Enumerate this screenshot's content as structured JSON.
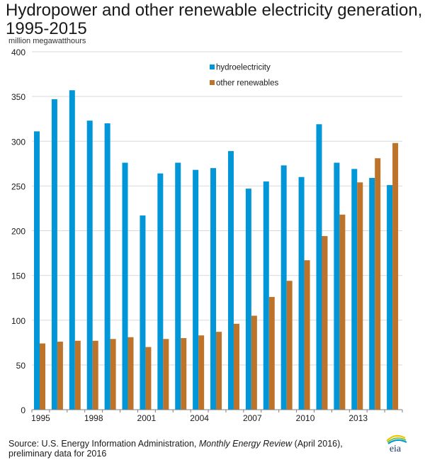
{
  "chart_data": {
    "type": "bar",
    "title": "Hydropower and other renewable electricity generation, 1995-2015",
    "ylabel": "million megawatthours",
    "xlabel": "",
    "ylim": [
      0,
      400
    ],
    "yticks": [
      0,
      50,
      100,
      150,
      200,
      250,
      300,
      350,
      400
    ],
    "grid": true,
    "legend_position": "top-center",
    "categories": [
      "1995",
      "1996",
      "1997",
      "1998",
      "1999",
      "2000",
      "2001",
      "2002",
      "2003",
      "2004",
      "2005",
      "2006",
      "2007",
      "2008",
      "2009",
      "2010",
      "2011",
      "2012",
      "2013",
      "2014",
      "2015"
    ],
    "xtick_labels": [
      "1995",
      "1998",
      "2001",
      "2004",
      "2007",
      "2010",
      "2013"
    ],
    "series": [
      {
        "name": "hydroelectricity",
        "color": "#0096d7",
        "values": [
          311,
          347,
          357,
          323,
          320,
          276,
          217,
          264,
          276,
          268,
          270,
          289,
          247,
          255,
          273,
          260,
          319,
          276,
          269,
          259,
          251
        ]
      },
      {
        "name": "other renewables",
        "color": "#bd732a",
        "values": [
          74,
          76,
          77,
          77,
          79,
          81,
          70,
          79,
          80,
          83,
          87,
          96,
          105,
          126,
          144,
          167,
          194,
          218,
          254,
          281,
          298
        ]
      }
    ]
  },
  "header": {
    "title_line1": "Hydropower and other renewable electricity generation,",
    "title_line2": "1995-2015",
    "unit_label": "million megawatthours"
  },
  "footer": {
    "source_prefix": "Source: U.S. Energy Information Administration, ",
    "source_italic": "Monthly Energy Review",
    "source_suffix": " (April 2016),",
    "source_line2": "preliminary data for 2016",
    "logo_text": "eia"
  },
  "colors": {
    "grid": "#d9d9d9",
    "axis": "#7f7f7f"
  }
}
